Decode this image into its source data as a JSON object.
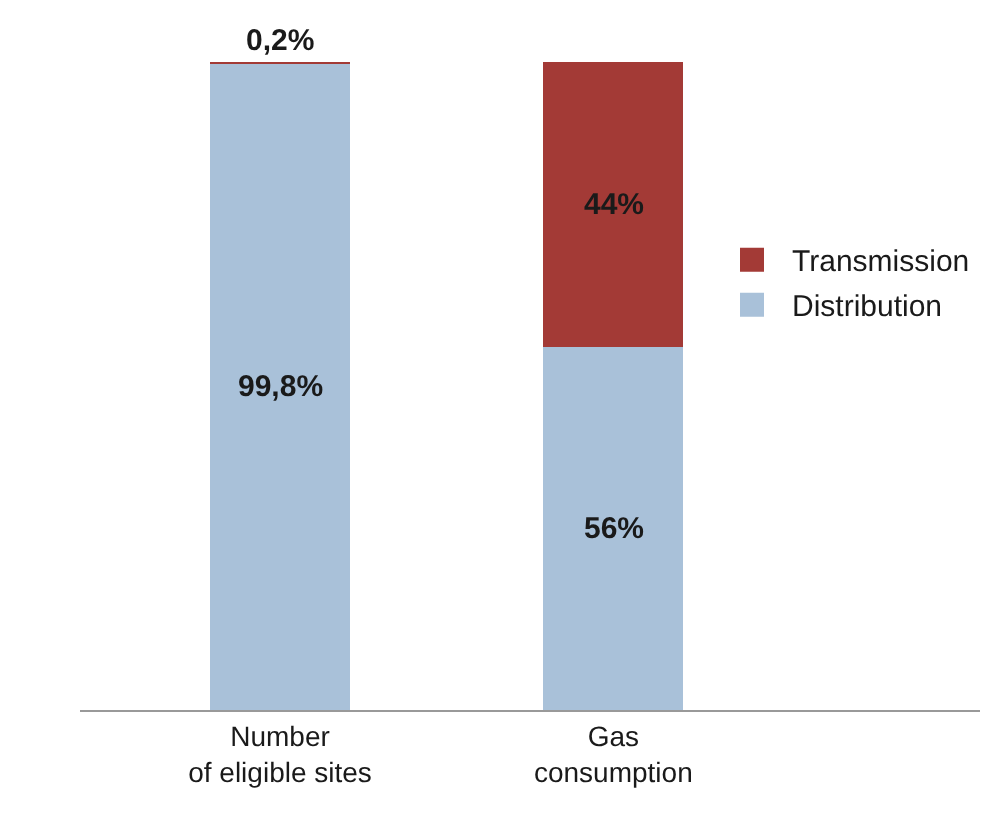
{
  "chart_data": {
    "type": "bar",
    "stacked": true,
    "categories": [
      "Number\nof eligible sites",
      "Gas\nconsumption"
    ],
    "series": [
      {
        "name": "Distribution",
        "color": "#a9c1d9",
        "values": [
          99.8,
          56
        ],
        "value_labels": [
          "99,8%",
          "56%"
        ]
      },
      {
        "name": "Transmission",
        "color": "#a33a36",
        "values": [
          0.2,
          44
        ],
        "value_labels": [
          "0,2%",
          "44%"
        ]
      }
    ],
    "legend": "right",
    "tick_labels": "x"
  }
}
